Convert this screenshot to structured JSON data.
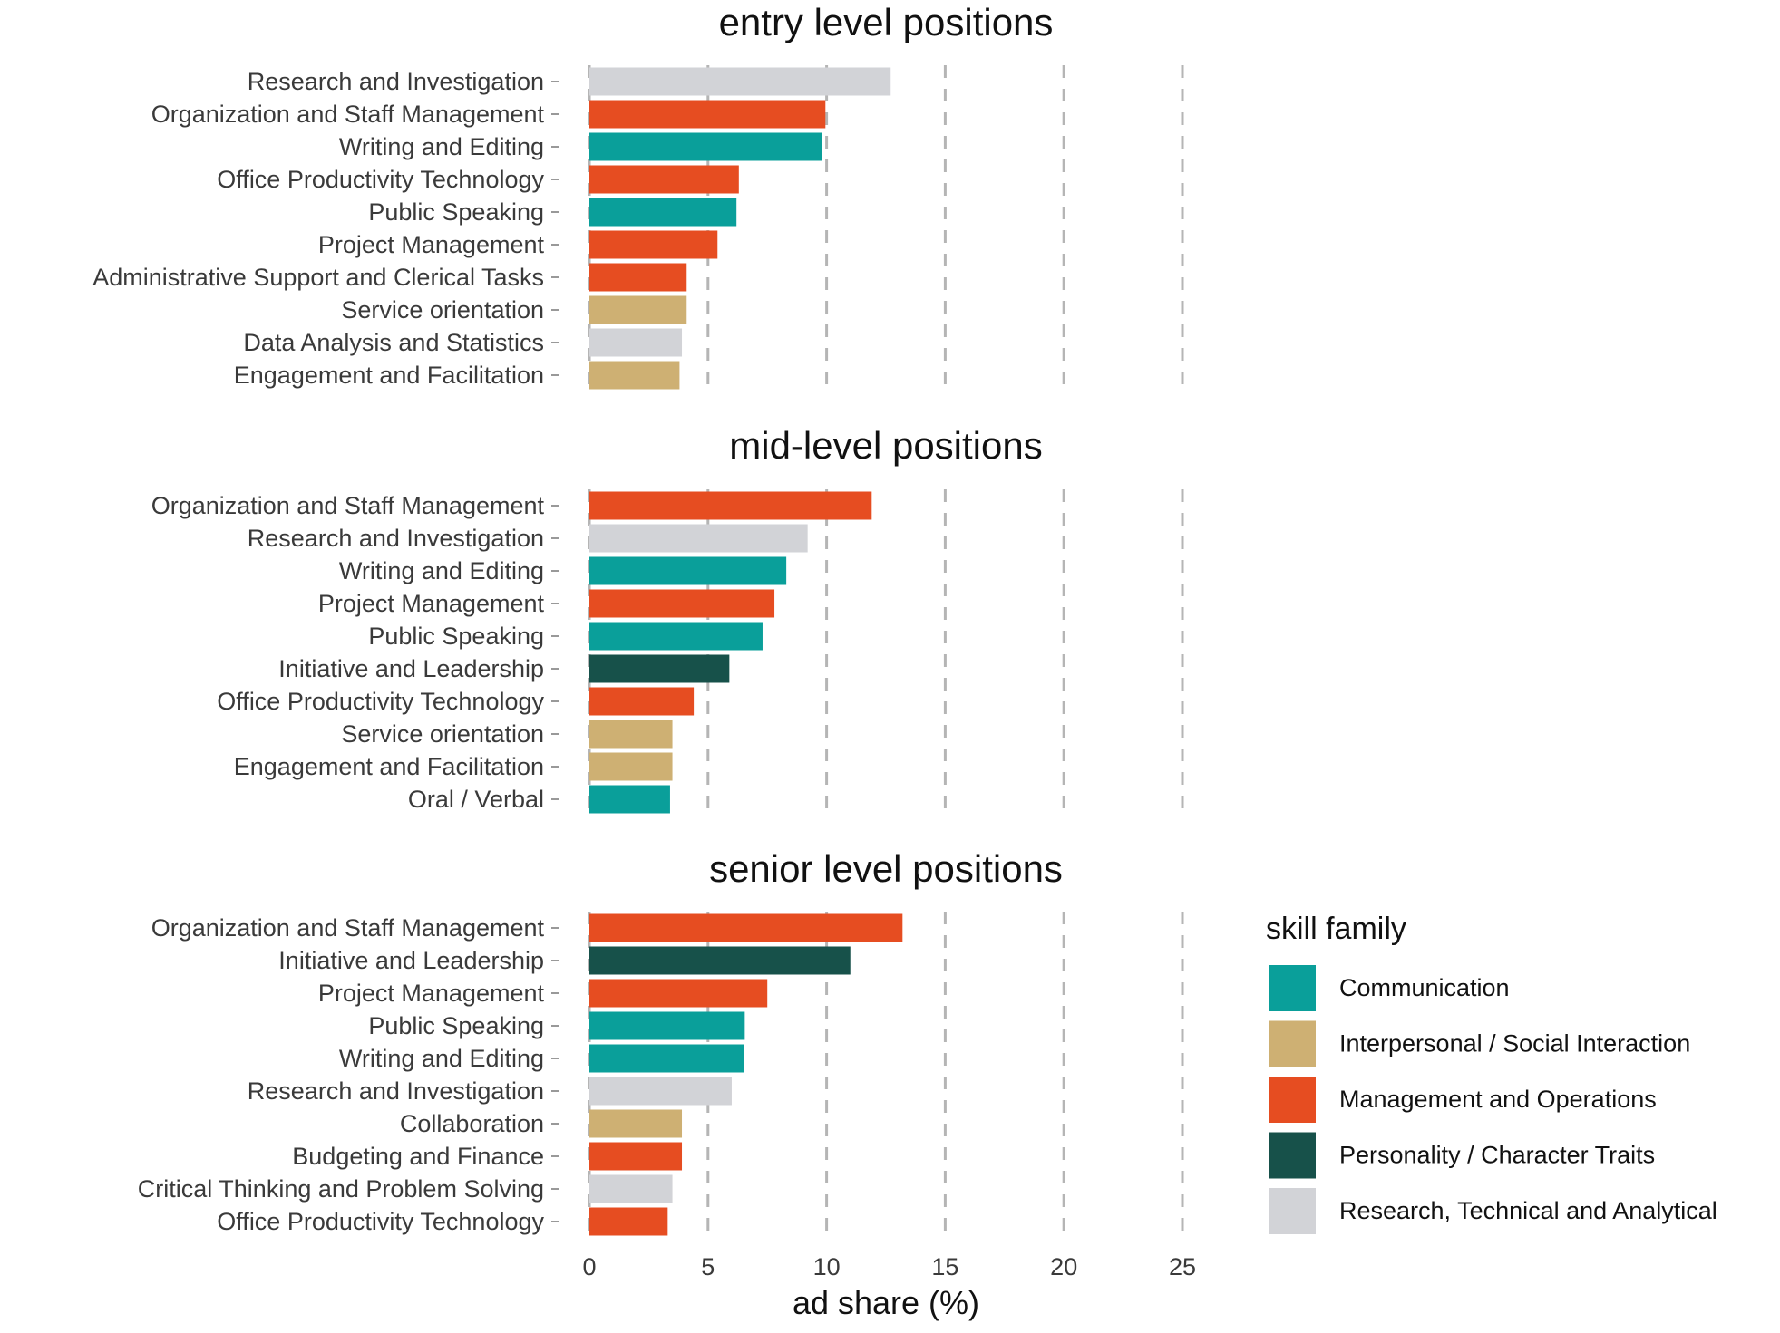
{
  "chart_data": {
    "type": "bar",
    "orientation": "horizontal",
    "xlabel": "ad share (%)",
    "xlim": [
      0,
      25
    ],
    "xticks": [
      0,
      5,
      10,
      15,
      20,
      25
    ],
    "grid": "vertical dashed",
    "legend": {
      "title": "skill family",
      "placement": "right-bottom",
      "entries": [
        {
          "name": "Communication",
          "color": "#0a9f9a"
        },
        {
          "name": "Interpersonal / Social Interaction",
          "color": "#ceb073"
        },
        {
          "name": "Management and Operations",
          "color": "#e64d21"
        },
        {
          "name": "Personality / Character Traits",
          "color": "#17514a"
        },
        {
          "name": "Research, Technical and Analytical",
          "color": "#d2d3d7"
        }
      ]
    },
    "panels": [
      {
        "title": "entry level positions",
        "bars": [
          {
            "label": "Research and Investigation",
            "value": 12.7,
            "family": 4
          },
          {
            "label": "Organization and Staff Management",
            "value": 9.95,
            "family": 2
          },
          {
            "label": "Writing and Editing",
            "value": 9.8,
            "family": 0
          },
          {
            "label": "Office Productivity Technology",
            "value": 6.3,
            "family": 2
          },
          {
            "label": "Public Speaking",
            "value": 6.2,
            "family": 0
          },
          {
            "label": "Project Management",
            "value": 5.4,
            "family": 2
          },
          {
            "label": "Administrative Support and Clerical Tasks",
            "value": 4.1,
            "family": 2
          },
          {
            "label": "Service orientation",
            "value": 4.1,
            "family": 1
          },
          {
            "label": "Data Analysis and Statistics",
            "value": 3.9,
            "family": 4
          },
          {
            "label": "Engagement and Facilitation",
            "value": 3.8,
            "family": 1
          }
        ]
      },
      {
        "title": "mid-level positions",
        "bars": [
          {
            "label": "Organization and Staff Management",
            "value": 11.9,
            "family": 2
          },
          {
            "label": "Research and Investigation",
            "value": 9.2,
            "family": 4
          },
          {
            "label": "Writing and Editing",
            "value": 8.3,
            "family": 0
          },
          {
            "label": "Project Management",
            "value": 7.8,
            "family": 2
          },
          {
            "label": "Public Speaking",
            "value": 7.3,
            "family": 0
          },
          {
            "label": "Initiative and Leadership",
            "value": 5.9,
            "family": 3
          },
          {
            "label": "Office Productivity Technology",
            "value": 4.4,
            "family": 2
          },
          {
            "label": "Service orientation",
            "value": 3.5,
            "family": 1
          },
          {
            "label": "Engagement and Facilitation",
            "value": 3.5,
            "family": 1
          },
          {
            "label": "Oral / Verbal",
            "value": 3.4,
            "family": 0
          }
        ]
      },
      {
        "title": "senior level positions",
        "bars": [
          {
            "label": "Organization and Staff Management",
            "value": 13.2,
            "family": 2
          },
          {
            "label": "Initiative and Leadership",
            "value": 11.0,
            "family": 3
          },
          {
            "label": "Project Management",
            "value": 7.5,
            "family": 2
          },
          {
            "label": "Public Speaking",
            "value": 6.55,
            "family": 0
          },
          {
            "label": "Writing and Editing",
            "value": 6.5,
            "family": 0
          },
          {
            "label": "Research and Investigation",
            "value": 6.0,
            "family": 4
          },
          {
            "label": "Collaboration",
            "value": 3.9,
            "family": 1
          },
          {
            "label": "Budgeting and Finance",
            "value": 3.9,
            "family": 2
          },
          {
            "label": "Critical Thinking and Problem Solving",
            "value": 3.5,
            "family": 4
          },
          {
            "label": "Office Productivity Technology",
            "value": 3.3,
            "family": 2
          }
        ]
      }
    ]
  }
}
